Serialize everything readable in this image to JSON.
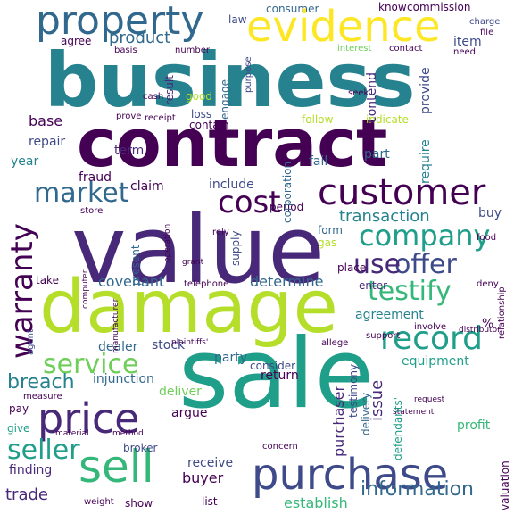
{
  "colors": {
    "background": "#ffffff",
    "palette": [
      "#440154",
      "#482878",
      "#3e4a89",
      "#31688e",
      "#26828e",
      "#1f9e89",
      "#35b779",
      "#6ece58",
      "#b5de2b",
      "#fde725"
    ]
  },
  "words": {
    "business": "business",
    "contract": "contract",
    "sale": "sale",
    "value": "value",
    "damage": "damage",
    "customer": "customer",
    "evidence": "evidence",
    "property": "property",
    "purchase": "purchase",
    "price": "price",
    "sell": "sell",
    "company": "company",
    "market": "market",
    "cost": "cost",
    "warranty": "warranty",
    "record": "record",
    "testify": "testify",
    "offer": "offer",
    "service": "service",
    "use": "use",
    "seller": "seller",
    "information": "information",
    "transaction": "transaction",
    "product": "product",
    "breach": "breach",
    "covenant": "covenant",
    "determine": "determine",
    "agreement": "agreement",
    "equipment": "equipment",
    "purchaser": "purchaser",
    "establish": "establish",
    "trade": "trade",
    "buyer": "buyer",
    "receive": "receive",
    "return": "return",
    "issue": "issue",
    "testimony": "testimony",
    "delivery": "delivery",
    "defendants": "defendants'",
    "injunction": "injunction",
    "deliver": "deliver",
    "argue": "argue",
    "consider": "consider",
    "party": "party",
    "stock": "stock",
    "dealer": "dealer",
    "broker": "broker",
    "finding": "finding",
    "profit": "profit",
    "support": "support",
    "allege": "allege",
    "enter": "enter",
    "form": "form",
    "gas": "gas",
    "place": "place",
    "buy": "buy",
    "fraud": "fraud",
    "claim": "claim",
    "include": "include",
    "period": "period",
    "supply": "supply",
    "repair": "repair",
    "term": "term",
    "year": "year",
    "base": "base",
    "fail": "fail",
    "part": "part",
    "require": "require",
    "follow": "follow",
    "indicate": "indicate",
    "contend": "contend",
    "provide": "provide",
    "item": "item",
    "agree": "agree",
    "law": "law",
    "consumer": "consumer",
    "know": "know",
    "commission": "commission",
    "good": "good",
    "loss": "loss",
    "result": "result",
    "engage": "engage",
    "cash": "cash",
    "contain": "contain",
    "corporation": "corporation",
    "telephone": "telephone",
    "take": "take",
    "present": "present",
    "store": "store",
    "pay": "pay",
    "give": "give",
    "measure": "measure",
    "agent": "agent",
    "show": "show",
    "list": "list",
    "weight": "weight",
    "concern": "concern",
    "charge": "charge",
    "valuation": "valuation",
    "relationship": "relationship",
    "food": "food",
    "deny": "deny",
    "seek": "seek",
    "number": "number",
    "purpose": "purpose",
    "basis": "basis",
    "prove": "prove",
    "receipt": "receipt",
    "interest": "interest",
    "contact": "contact",
    "file": "file",
    "need": "need",
    "manufacturer": "manufacturer",
    "computer": "computer",
    "operation": "operation",
    "grant": "grant",
    "rely": "rely",
    "involve": "involve",
    "distributor": "distributor",
    "request": "request",
    "statement": "statement",
    "method": "method",
    "material": "material",
    "plaintiffs": "plaintiffs'",
    "percent": "%"
  }
}
